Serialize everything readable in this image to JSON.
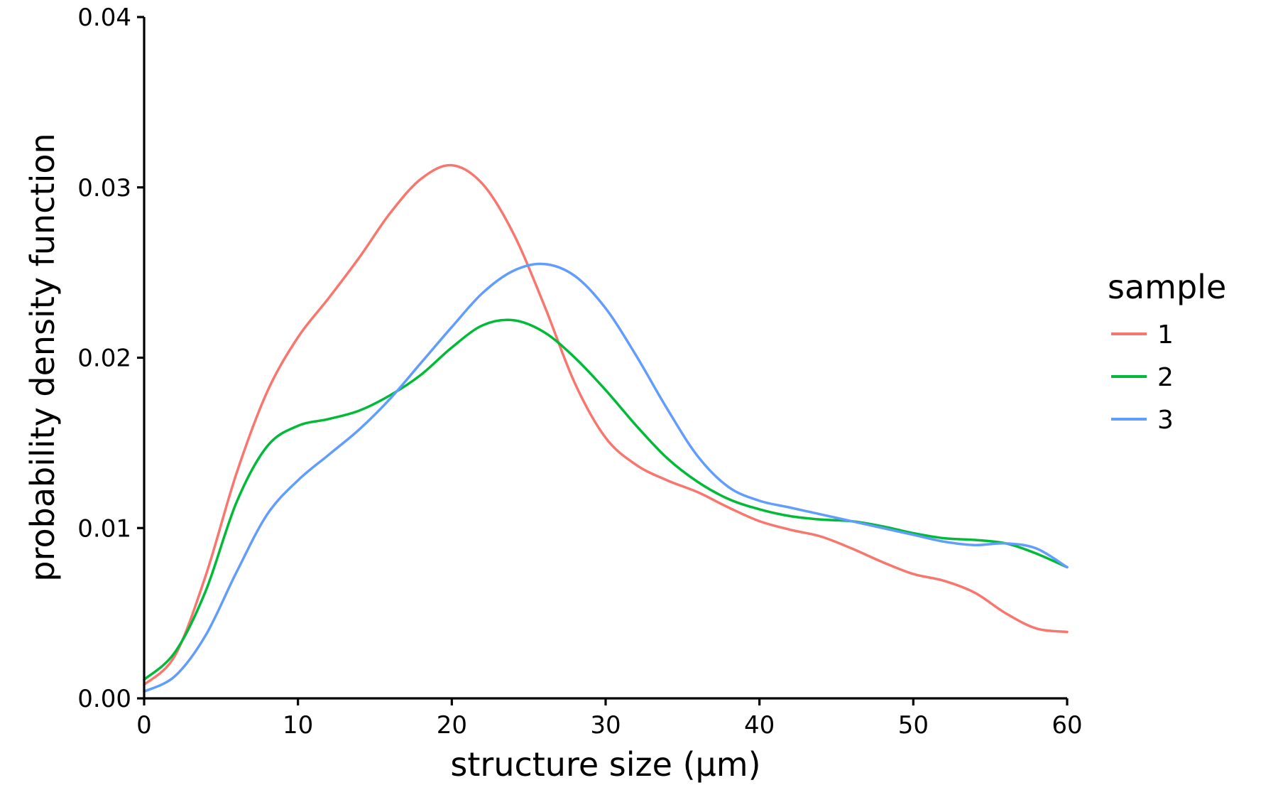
{
  "chart_data": {
    "type": "line",
    "title": "",
    "xlabel": "structure size (µm)",
    "ylabel": "probability density function",
    "xlim": [
      0,
      60
    ],
    "ylim": [
      0,
      0.04
    ],
    "x_ticks": [
      "0",
      "10",
      "20",
      "30",
      "40",
      "50",
      "60"
    ],
    "y_ticks": [
      "0.00",
      "0.01",
      "0.02",
      "0.03",
      "0.04"
    ],
    "grid": false,
    "legend": {
      "title": "sample",
      "position": "right"
    },
    "series": [
      {
        "name": "1",
        "color": "#F8766D",
        "x": [
          0,
          2,
          4,
          6,
          8,
          10,
          12,
          14,
          16,
          18,
          20,
          22,
          24,
          26,
          28,
          30,
          32,
          34,
          36,
          38,
          40,
          42,
          44,
          46,
          48,
          50,
          52,
          54,
          56,
          58,
          60
        ],
        "y": [
          0.0008,
          0.0025,
          0.0072,
          0.0132,
          0.018,
          0.0212,
          0.0235,
          0.0259,
          0.0285,
          0.0305,
          0.0313,
          0.0302,
          0.0273,
          0.0231,
          0.0185,
          0.0153,
          0.0137,
          0.0128,
          0.0121,
          0.0112,
          0.0104,
          0.0099,
          0.0095,
          0.0088,
          0.008,
          0.0073,
          0.0069,
          0.0062,
          0.005,
          0.0041,
          0.0039
        ]
      },
      {
        "name": "2",
        "color": "#00BA38",
        "x": [
          0,
          2,
          4,
          6,
          8,
          10,
          12,
          14,
          16,
          18,
          20,
          22,
          24,
          26,
          28,
          30,
          32,
          34,
          36,
          38,
          40,
          42,
          44,
          46,
          48,
          50,
          52,
          54,
          56,
          58,
          60
        ],
        "y": [
          0.0011,
          0.0027,
          0.0063,
          0.0115,
          0.0148,
          0.016,
          0.0164,
          0.0169,
          0.0178,
          0.019,
          0.0206,
          0.0219,
          0.0222,
          0.0215,
          0.02,
          0.0181,
          0.016,
          0.0141,
          0.0127,
          0.0117,
          0.0111,
          0.0107,
          0.0105,
          0.0104,
          0.0101,
          0.0097,
          0.0094,
          0.0093,
          0.0091,
          0.0085,
          0.0077
        ]
      },
      {
        "name": "3",
        "color": "#619CFF",
        "x": [
          0,
          2,
          4,
          6,
          8,
          10,
          12,
          14,
          16,
          18,
          20,
          22,
          24,
          26,
          28,
          30,
          32,
          34,
          36,
          38,
          40,
          42,
          44,
          46,
          48,
          50,
          52,
          54,
          56,
          58,
          60
        ],
        "y": [
          0.0004,
          0.0013,
          0.0037,
          0.0074,
          0.0108,
          0.0128,
          0.0143,
          0.0158,
          0.0176,
          0.0197,
          0.0218,
          0.0238,
          0.0251,
          0.0255,
          0.0248,
          0.0229,
          0.0201,
          0.017,
          0.0142,
          0.0124,
          0.0116,
          0.0112,
          0.0108,
          0.0104,
          0.01,
          0.0096,
          0.0092,
          0.009,
          0.0091,
          0.0088,
          0.0077
        ]
      }
    ]
  }
}
